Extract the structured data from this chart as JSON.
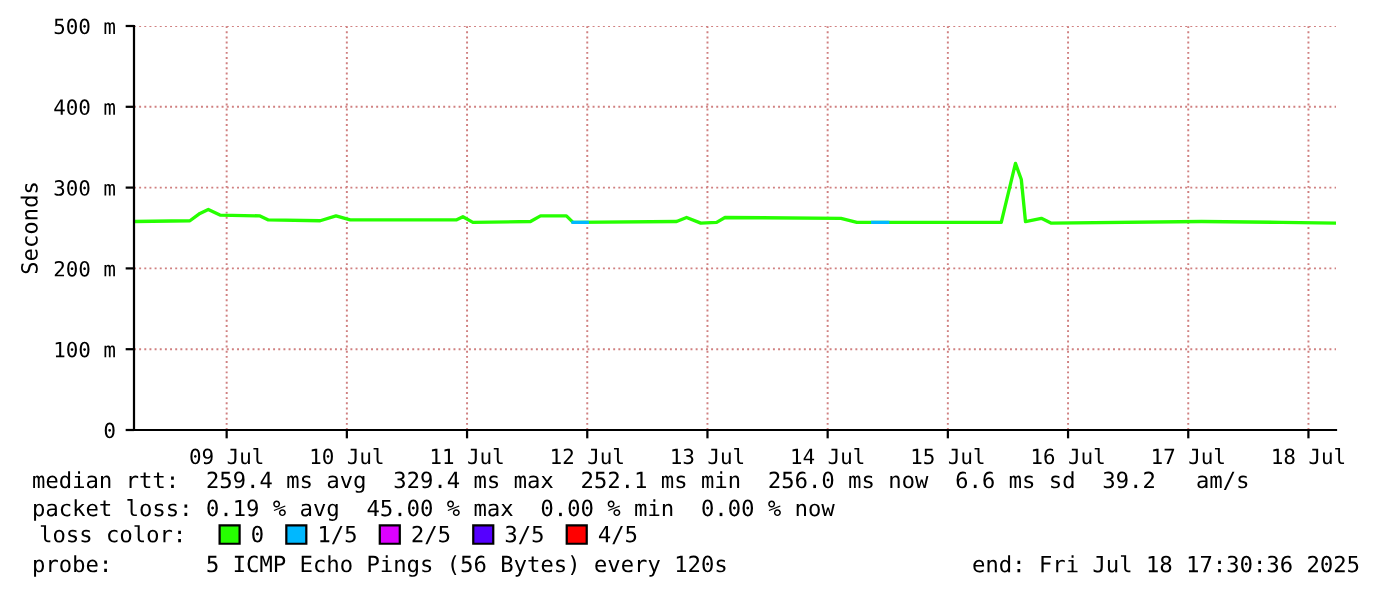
{
  "chart_data": {
    "type": "line",
    "ylabel": "Seconds",
    "legend_title": "loss color:",
    "legend": "bottom",
    "grid": true,
    "marker": "none",
    "line_style": "solid",
    "xlim": [
      "2025-07-08T17:30",
      "2025-07-18T17:30"
    ],
    "xticks": [
      {
        "value": "2025-07-09T12:00",
        "label": "09 Jul"
      },
      {
        "value": "2025-07-10T12:00",
        "label": "10 Jul"
      },
      {
        "value": "2025-07-11T12:00",
        "label": "11 Jul"
      },
      {
        "value": "2025-07-12T12:00",
        "label": "12 Jul"
      },
      {
        "value": "2025-07-13T12:00",
        "label": "13 Jul"
      },
      {
        "value": "2025-07-14T12:00",
        "label": "14 Jul"
      },
      {
        "value": "2025-07-15T12:00",
        "label": "15 Jul"
      },
      {
        "value": "2025-07-16T12:00",
        "label": "16 Jul"
      },
      {
        "value": "2025-07-17T12:00",
        "label": "17 Jul"
      },
      {
        "value": "2025-07-18T12:00",
        "label": "18 Jul"
      }
    ],
    "ylim": [
      0,
      500
    ],
    "yticks": [
      0,
      {
        "value": 100,
        "label": "100 m"
      },
      {
        "value": 200,
        "label": "200 m"
      },
      {
        "value": 300,
        "label": "300 m"
      },
      {
        "value": 400,
        "label": "400 m"
      },
      {
        "value": 500,
        "label": "500 m"
      }
    ],
    "series": [
      {
        "name": "0",
        "color": "#26ff00",
        "x": [
          "2025-07-08T17:30",
          "2025-07-09T04:40",
          "2025-07-09T06:40",
          "2025-07-09T08:20",
          "2025-07-09T10:40",
          "2025-07-09T18:40",
          "2025-07-09T20:20",
          "2025-07-10T06:40",
          "2025-07-10T09:50",
          "2025-07-10T12:40",
          "2025-07-11T09:50",
          "2025-07-11T11:10",
          "2025-07-11T13:10",
          "2025-07-12T00:40",
          "2025-07-12T02:40",
          "2025-07-12T07:50",
          "2025-07-12T09:10",
          "2025-07-13T05:50",
          "2025-07-13T07:50",
          "2025-07-13T10:40",
          "2025-07-13T13:50",
          "2025-07-13T15:30",
          "2025-07-14T14:40",
          "2025-07-14T17:50",
          "2025-07-15T22:40",
          "2025-07-16T00:20",
          "2025-07-16T01:30",
          "2025-07-16T02:40",
          "2025-07-16T03:30",
          "2025-07-16T06:40",
          "2025-07-16T08:40",
          "2025-07-17T14:40",
          "2025-07-18T06:40",
          "2025-07-18T17:30"
        ],
        "values": [
          258,
          259,
          268,
          273,
          266,
          265,
          260,
          259,
          265,
          260,
          260,
          264,
          257,
          258,
          265,
          265,
          257,
          258,
          263,
          256,
          257,
          263,
          262,
          257,
          257,
          300,
          330,
          310,
          258,
          262,
          256,
          258,
          257,
          256
        ]
      },
      {
        "name": "1/5",
        "color": "#00b8ff",
        "x": [
          "2025-07-12T09:10",
          "2025-07-12T12:00",
          "2025-07-12T13:00",
          "2025-07-14T21:00",
          "2025-07-15T00:00"
        ],
        "values": [
          257,
          257,
          null,
          257,
          257
        ]
      },
      {
        "name": "2/5",
        "color": "#dd00ff"
      },
      {
        "name": "3/5",
        "color": "#5500ff"
      },
      {
        "name": "4/5",
        "color": "#ff0000"
      }
    ],
    "annotations": [
      "median rtt:  259.4 ms avg  329.4 ms max  252.1 ms min  256.0 ms now  6.6 ms sd  39.2   am/s",
      "packet loss: 0.19 % avg  45.00 % max  0.00 % min  0.00 % now",
      "probe:       5 ICMP Echo Pings (56 Bytes) every 120s",
      "end: Fri Jul 18 17:30:36 2025"
    ]
  }
}
